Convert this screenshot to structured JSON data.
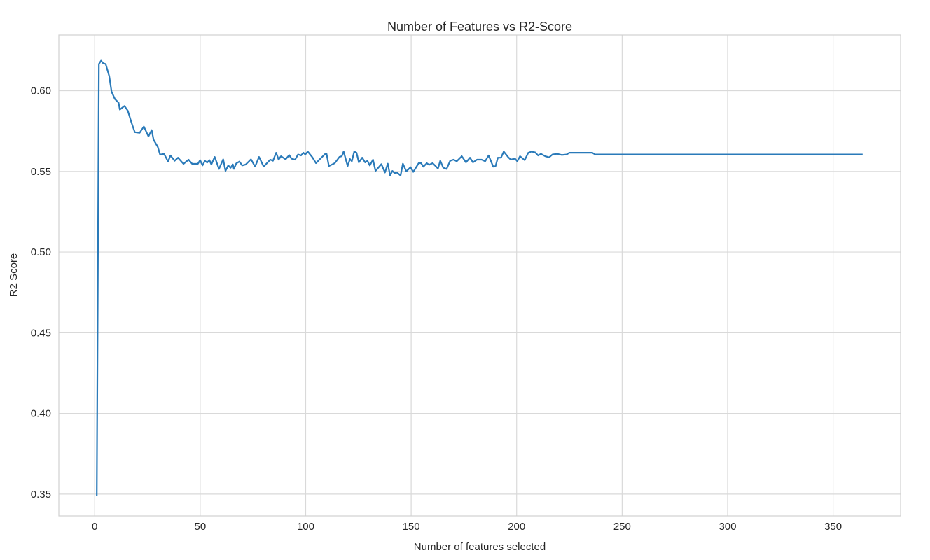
{
  "chart_data": {
    "type": "line",
    "title": "Number of Features vs R2-Score",
    "xlabel": "Number of features selected",
    "ylabel": "R2 Score",
    "xlim": [
      -17,
      382
    ],
    "ylim": [
      0.3365,
      0.6345
    ],
    "xticks": [
      0,
      50,
      100,
      150,
      200,
      250,
      300,
      350
    ],
    "yticks": [
      0.35,
      0.4,
      0.45,
      0.5,
      0.55,
      0.6
    ],
    "ytick_labels": [
      "0.35",
      "0.40",
      "0.45",
      "0.50",
      "0.55",
      "0.60"
    ],
    "grid": true,
    "line_color": "#2a7ab9",
    "grid_color": "#d9d9d9",
    "series": [
      {
        "name": "R2 Score",
        "x": [
          1,
          2,
          3,
          4,
          5.2,
          6.9,
          8,
          9.6,
          11.3,
          11.9,
          14.1,
          15.7,
          17.4,
          19,
          21.3,
          23.3,
          25.5,
          27,
          27.9,
          29.9,
          31,
          32.9,
          34.8,
          35.9,
          37.9,
          39.5,
          42.1,
          44.5,
          46.2,
          48.9,
          50,
          51.1,
          52.2,
          53.3,
          54.4,
          55.3,
          56.9,
          58.9,
          60.9,
          62,
          63.3,
          64.4,
          65.5,
          66,
          67.1,
          68.6,
          69.9,
          71.6,
          74.1,
          76,
          77.9,
          80.1,
          83.2,
          84.5,
          86,
          87.2,
          88.3,
          90.5,
          92.2,
          93.3,
          95,
          96.4,
          97.8,
          98.9,
          99.8,
          101,
          103.2,
          104.9,
          106.5,
          109.3,
          109.9,
          111,
          113.8,
          116,
          117.1,
          118,
          119.9,
          121,
          121.9,
          123,
          124.1,
          125.2,
          126.8,
          128.2,
          129.3,
          130.4,
          131.9,
          133.1,
          135.9,
          137.6,
          138.9,
          140,
          141.1,
          142.2,
          143.3,
          145,
          146.1,
          147.7,
          149.7,
          151,
          153.6,
          154.7,
          155.8,
          157.4,
          158.5,
          160.2,
          162.7,
          163.8,
          165.2,
          166.8,
          168.5,
          170.1,
          171.6,
          174,
          176,
          177.9,
          179.3,
          181.2,
          183.4,
          185.1,
          186.7,
          188.9,
          190,
          191.1,
          192.6,
          193.9,
          195.9,
          197.2,
          199.2,
          200.3,
          201.6,
          203.8,
          205.5,
          207.1,
          208.8,
          210.2,
          211.5,
          213.5,
          215.4,
          217,
          219.2,
          221.4,
          223.7,
          225,
          235.8,
          237.2,
          364
        ],
        "y": [
          0.349,
          0.6165,
          0.6186,
          0.617,
          0.6165,
          0.609,
          0.5994,
          0.5948,
          0.5926,
          0.5883,
          0.5905,
          0.5876,
          0.5804,
          0.5743,
          0.5739,
          0.5778,
          0.5717,
          0.5756,
          0.5696,
          0.5652,
          0.5604,
          0.5609,
          0.5561,
          0.5599,
          0.5566,
          0.5585,
          0.5547,
          0.5573,
          0.5547,
          0.5547,
          0.557,
          0.5537,
          0.5566,
          0.5555,
          0.557,
          0.5543,
          0.559,
          0.5515,
          0.5575,
          0.5503,
          0.5537,
          0.5522,
          0.5543,
          0.5515,
          0.555,
          0.5561,
          0.5537,
          0.5543,
          0.5575,
          0.553,
          0.559,
          0.553,
          0.5573,
          0.5566,
          0.5616,
          0.5573,
          0.5594,
          0.5575,
          0.5601,
          0.5579,
          0.5573,
          0.5605,
          0.5599,
          0.5616,
          0.5605,
          0.5623,
          0.5587,
          0.5551,
          0.5573,
          0.5609,
          0.5609,
          0.5533,
          0.5551,
          0.559,
          0.5594,
          0.5623,
          0.5533,
          0.5577,
          0.5563,
          0.5623,
          0.5616,
          0.5556,
          0.5585,
          0.5556,
          0.5566,
          0.5537,
          0.5573,
          0.5503,
          0.5545,
          0.5493,
          0.5548,
          0.5475,
          0.5503,
          0.5489,
          0.5493,
          0.5475,
          0.5548,
          0.55,
          0.5526,
          0.5497,
          0.5551,
          0.5551,
          0.5529,
          0.5551,
          0.5541,
          0.5551,
          0.5518,
          0.5566,
          0.5523,
          0.5515,
          0.5566,
          0.5573,
          0.5563,
          0.5594,
          0.5556,
          0.5585,
          0.5556,
          0.5573,
          0.5573,
          0.5563,
          0.5599,
          0.5529,
          0.5533,
          0.5585,
          0.5585,
          0.5623,
          0.559,
          0.5573,
          0.558,
          0.5563,
          0.5594,
          0.557,
          0.5616,
          0.5623,
          0.5618,
          0.5599,
          0.5609,
          0.5594,
          0.5587,
          0.5605,
          0.5609,
          0.5602,
          0.5605,
          0.5616,
          0.5616,
          0.5605,
          0.5605
        ]
      }
    ]
  }
}
